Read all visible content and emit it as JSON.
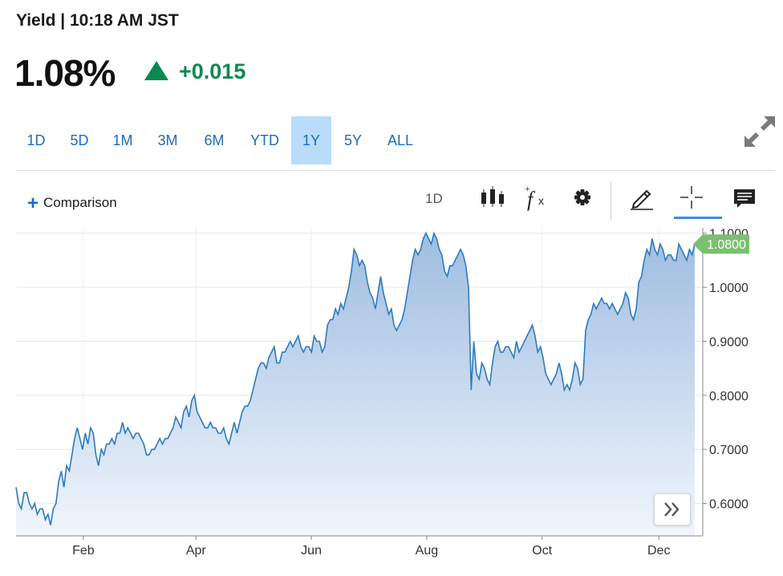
{
  "header": {
    "yield_label": "Yield | 10:18 AM JST",
    "price": "1.08%",
    "change": "+0.015",
    "change_direction": "up",
    "change_color": "#0a8a4f"
  },
  "range_tabs": {
    "items": [
      "1D",
      "5D",
      "1M",
      "3M",
      "6M",
      "YTD",
      "1Y",
      "5Y",
      "ALL"
    ],
    "active": "1Y"
  },
  "toolbar": {
    "comparison_label": "Comparison",
    "interval_label": "1D",
    "icons": [
      "candlestick-icon",
      "function-icon",
      "gear-icon",
      "pencil-icon",
      "crosshair-icon",
      "comment-icon"
    ]
  },
  "chart_data": {
    "type": "area",
    "x_tick_labels": [
      "Feb",
      "Apr",
      "Jun",
      "Aug",
      "Oct",
      "Dec"
    ],
    "y_tick_labels": [
      "1.1000",
      "1.0000",
      "0.9000",
      "0.8000",
      "0.7000",
      "0.6000"
    ],
    "y_ticks": [
      1.1,
      1.0,
      0.9,
      0.8,
      0.7,
      0.6
    ],
    "ylim": [
      0.54,
      1.11
    ],
    "last_value_label": "1.0800",
    "last_value": 1.08,
    "line_color": "#2b7bbf",
    "fill_top_color": "#9ebde0",
    "fill_bottom_color": "#f1f6fc",
    "last_value_badge_color": "#7cbf72",
    "grid": true,
    "values": [
      0.63,
      0.6,
      0.59,
      0.62,
      0.62,
      0.6,
      0.59,
      0.6,
      0.58,
      0.59,
      0.59,
      0.57,
      0.58,
      0.56,
      0.59,
      0.6,
      0.64,
      0.66,
      0.63,
      0.67,
      0.66,
      0.69,
      0.72,
      0.74,
      0.72,
      0.7,
      0.73,
      0.71,
      0.74,
      0.73,
      0.69,
      0.67,
      0.7,
      0.69,
      0.71,
      0.71,
      0.72,
      0.71,
      0.73,
      0.73,
      0.75,
      0.73,
      0.74,
      0.73,
      0.72,
      0.73,
      0.73,
      0.72,
      0.71,
      0.69,
      0.69,
      0.7,
      0.7,
      0.71,
      0.72,
      0.71,
      0.72,
      0.72,
      0.73,
      0.74,
      0.76,
      0.75,
      0.74,
      0.77,
      0.78,
      0.76,
      0.79,
      0.8,
      0.77,
      0.76,
      0.75,
      0.74,
      0.74,
      0.75,
      0.74,
      0.74,
      0.73,
      0.73,
      0.74,
      0.72,
      0.71,
      0.73,
      0.75,
      0.73,
      0.75,
      0.77,
      0.78,
      0.78,
      0.79,
      0.81,
      0.83,
      0.85,
      0.86,
      0.86,
      0.85,
      0.87,
      0.88,
      0.89,
      0.86,
      0.86,
      0.88,
      0.88,
      0.89,
      0.9,
      0.89,
      0.9,
      0.91,
      0.89,
      0.88,
      0.89,
      0.89,
      0.88,
      0.91,
      0.9,
      0.9,
      0.88,
      0.89,
      0.93,
      0.94,
      0.94,
      0.96,
      0.95,
      0.97,
      0.96,
      0.98,
      1.0,
      1.03,
      1.07,
      1.06,
      1.04,
      1.05,
      1.04,
      1.01,
      0.99,
      0.98,
      0.96,
      0.99,
      1.02,
      0.99,
      0.97,
      0.95,
      0.96,
      0.93,
      0.92,
      0.93,
      0.94,
      0.96,
      0.99,
      1.02,
      1.05,
      1.07,
      1.06,
      1.07,
      1.09,
      1.1,
      1.09,
      1.08,
      1.1,
      1.09,
      1.07,
      1.06,
      1.03,
      1.02,
      1.04,
      1.04,
      1.05,
      1.06,
      1.07,
      1.06,
      1.04,
      1.0,
      0.81,
      0.9,
      0.84,
      0.83,
      0.86,
      0.85,
      0.83,
      0.82,
      0.86,
      0.89,
      0.9,
      0.88,
      0.88,
      0.89,
      0.89,
      0.88,
      0.87,
      0.9,
      0.88,
      0.89,
      0.9,
      0.91,
      0.92,
      0.93,
      0.91,
      0.88,
      0.89,
      0.87,
      0.84,
      0.83,
      0.82,
      0.83,
      0.84,
      0.86,
      0.84,
      0.81,
      0.82,
      0.81,
      0.83,
      0.86,
      0.85,
      0.82,
      0.83,
      0.92,
      0.94,
      0.95,
      0.97,
      0.96,
      0.97,
      0.98,
      0.97,
      0.97,
      0.96,
      0.97,
      0.96,
      0.95,
      0.96,
      0.97,
      0.99,
      0.98,
      0.95,
      0.94,
      0.96,
      1.01,
      1.02,
      1.05,
      1.07,
      1.06,
      1.09,
      1.07,
      1.06,
      1.08,
      1.07,
      1.05,
      1.06,
      1.06,
      1.05,
      1.05,
      1.08,
      1.07,
      1.06,
      1.05,
      1.07,
      1.06,
      1.08
    ]
  }
}
